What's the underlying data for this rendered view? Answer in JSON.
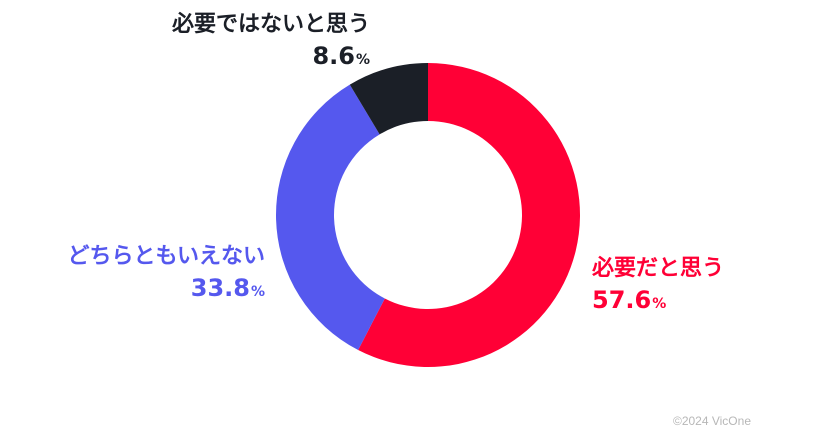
{
  "chart_data": {
    "type": "pie",
    "donut": true,
    "start": "top",
    "direction": "clockwise",
    "slices": [
      {
        "label": "必要だと思う",
        "value": 57.6,
        "display": "57.6",
        "unit": "%",
        "color": "#ff0036"
      },
      {
        "label": "どちらともいえない",
        "value": 33.8,
        "display": "33.8",
        "unit": "%",
        "color": "#5558ee"
      },
      {
        "label": "必要ではないと思う",
        "value": 8.6,
        "display": "8.6",
        "unit": "%",
        "color": "#1b1f27"
      }
    ]
  },
  "copyright": "©2024 VicOne"
}
